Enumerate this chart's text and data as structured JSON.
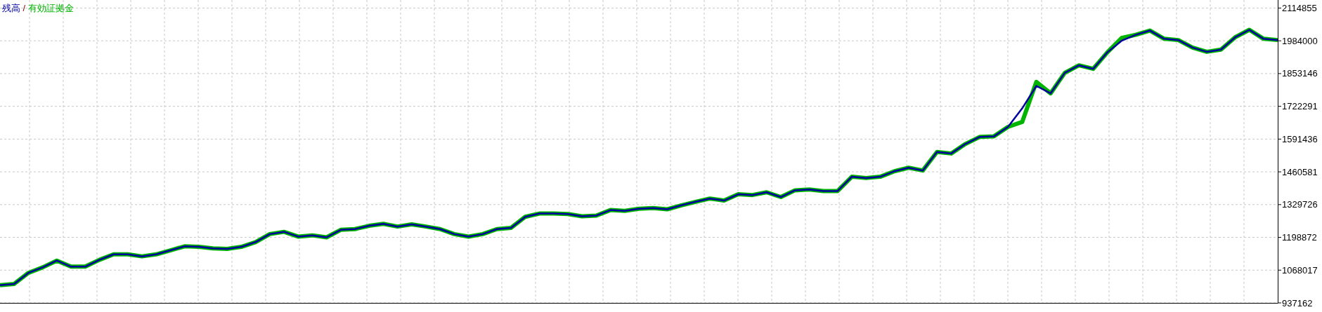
{
  "chart_data": {
    "type": "line",
    "categories": [
      null,
      null,
      null,
      null,
      null,
      null,
      null,
      null,
      null,
      null,
      null,
      null,
      null,
      null,
      null,
      null,
      null,
      null,
      null,
      null,
      null,
      null,
      null,
      null,
      null,
      null,
      null,
      null,
      null,
      null,
      null,
      null,
      null,
      null,
      null,
      null,
      null,
      null,
      null,
      null,
      null,
      null,
      null,
      null,
      null,
      null,
      null,
      null,
      null,
      null,
      null,
      null,
      null,
      null,
      null,
      null,
      null,
      null,
      null,
      null,
      null,
      null,
      null,
      null,
      null,
      null,
      null,
      null,
      null,
      null,
      null,
      null,
      null,
      null,
      null,
      null,
      null,
      null,
      null,
      null,
      null,
      null,
      null,
      null,
      null,
      null,
      null,
      null,
      null,
      null,
      null
    ],
    "series": [
      {
        "name": "有効証拠金",
        "color": "#00b400",
        "values": [
          1008000,
          1013000,
          1057000,
          1079000,
          1106000,
          1082000,
          1082000,
          1109000,
          1131000,
          1131000,
          1123000,
          1131000,
          1147000,
          1163000,
          1161000,
          1155000,
          1153000,
          1161000,
          1180000,
          1212000,
          1221000,
          1202000,
          1207000,
          1199000,
          1229000,
          1232000,
          1245000,
          1253000,
          1242000,
          1251000,
          1242000,
          1232000,
          1212000,
          1202000,
          1212000,
          1232000,
          1237000,
          1281000,
          1294000,
          1294000,
          1292000,
          1283000,
          1286000,
          1308000,
          1305000,
          1313000,
          1316000,
          1311000,
          1327000,
          1341000,
          1354000,
          1346000,
          1371000,
          1368000,
          1379000,
          1360000,
          1387000,
          1390000,
          1384000,
          1384000,
          1441000,
          1436000,
          1441000,
          1463000,
          1477000,
          1466000,
          1540000,
          1534000,
          1572000,
          1600000,
          1602000,
          1640000,
          1660000,
          1820000,
          1774000,
          1856000,
          1886000,
          1872000,
          1938000,
          1995000,
          2008000,
          2025000,
          1992000,
          1987000,
          1957000,
          1940000,
          1949000,
          1998000,
          2028000,
          1992000,
          1987000
        ]
      },
      {
        "name": "残高",
        "color": "#0000a0",
        "values": [
          1008000,
          1013000,
          1057000,
          1079000,
          1106000,
          1082000,
          1082000,
          1109000,
          1131000,
          1131000,
          1123000,
          1131000,
          1147000,
          1163000,
          1161000,
          1155000,
          1153000,
          1161000,
          1180000,
          1212000,
          1221000,
          1202000,
          1207000,
          1199000,
          1229000,
          1232000,
          1245000,
          1253000,
          1242000,
          1251000,
          1242000,
          1232000,
          1212000,
          1202000,
          1212000,
          1232000,
          1237000,
          1281000,
          1294000,
          1294000,
          1292000,
          1283000,
          1286000,
          1308000,
          1305000,
          1313000,
          1316000,
          1311000,
          1327000,
          1341000,
          1354000,
          1346000,
          1371000,
          1368000,
          1379000,
          1360000,
          1387000,
          1390000,
          1384000,
          1384000,
          1441000,
          1436000,
          1441000,
          1463000,
          1477000,
          1466000,
          1540000,
          1534000,
          1572000,
          1600000,
          1602000,
          1640000,
          1714000,
          1804000,
          1774000,
          1856000,
          1886000,
          1872000,
          1938000,
          1984000,
          2008000,
          2025000,
          1992000,
          1987000,
          1957000,
          1940000,
          1949000,
          1998000,
          2028000,
          1992000,
          1987000
        ]
      }
    ],
    "ylim": [
      937162,
      2147000
    ],
    "yticks": [
      937162,
      1068017,
      1198872,
      1329726,
      1460581,
      1591436,
      1722291,
      1853146,
      1984000,
      2114855
    ],
    "annotations": [
      "/"
    ],
    "grid": true,
    "legend": "top left",
    "marker": "none",
    "line_style": "solid"
  }
}
